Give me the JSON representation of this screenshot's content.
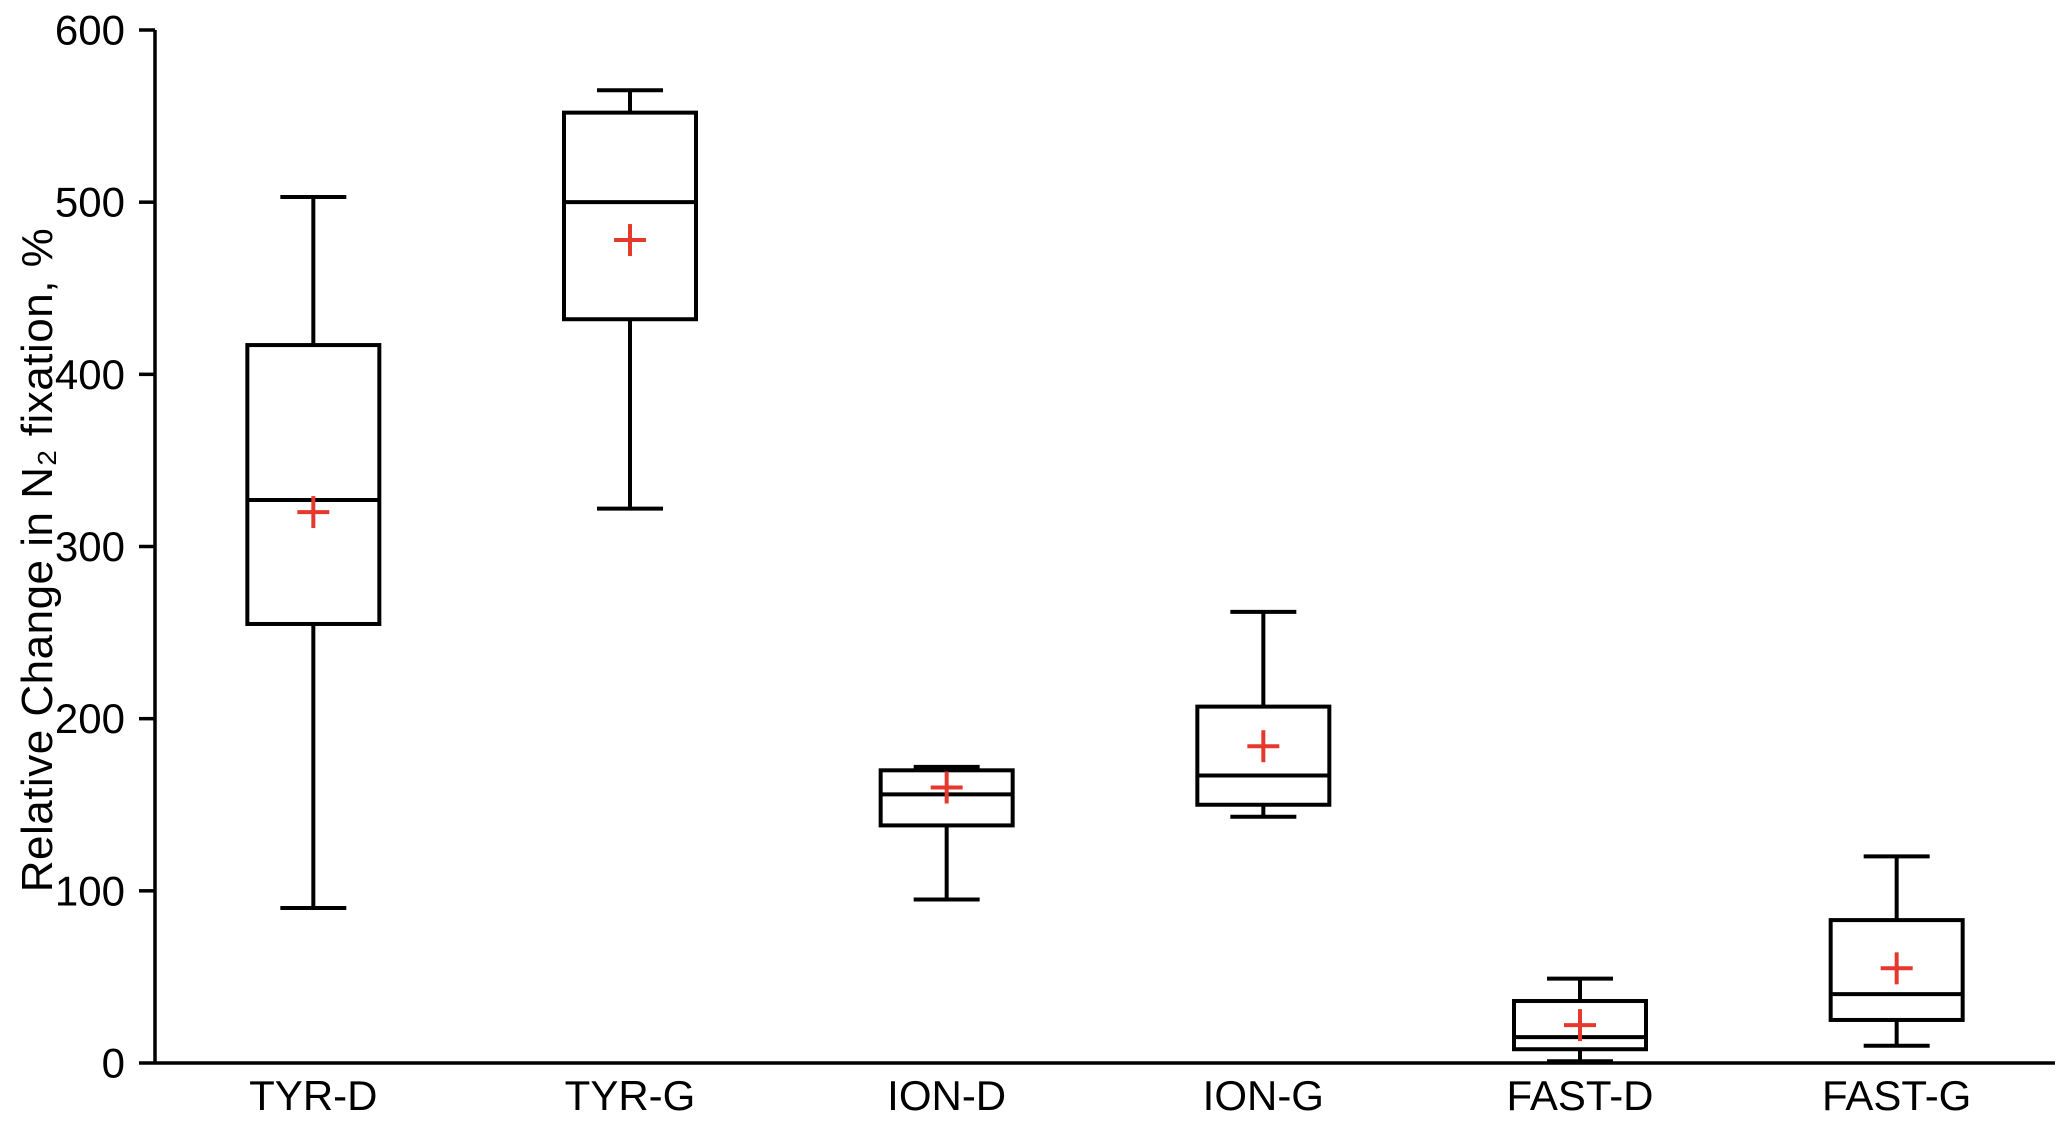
{
  "chart_data": {
    "type": "boxplot",
    "title": "",
    "xlabel": "",
    "ylabel": "Relative Change in N₂ fixation, %",
    "ylim": [
      0,
      600
    ],
    "yticks": [
      0,
      100,
      200,
      300,
      400,
      500,
      600
    ],
    "grid": false,
    "legend": "none",
    "box_stroke_color": "#000000",
    "box_fill_color": "#ffffff",
    "mean_marker": {
      "shape": "plus",
      "color": "#e5392e"
    },
    "categories": [
      "TYR-D",
      "TYR-G",
      "ION-D",
      "ION-G",
      "FAST-D",
      "FAST-G"
    ],
    "series": [
      {
        "name": "TYR-D",
        "whisker_low": 90,
        "q1": 255,
        "median": 327,
        "q3": 417,
        "whisker_high": 503,
        "mean": 320
      },
      {
        "name": "TYR-G",
        "whisker_low": 322,
        "q1": 432,
        "median": 500,
        "q3": 552,
        "whisker_high": 565,
        "mean": 478
      },
      {
        "name": "ION-D",
        "whisker_low": 95,
        "q1": 138,
        "median": 156,
        "q3": 170,
        "whisker_high": 172,
        "mean": 160
      },
      {
        "name": "ION-G",
        "whisker_low": 143,
        "q1": 150,
        "median": 167,
        "q3": 207,
        "whisker_high": 262,
        "mean": 184
      },
      {
        "name": "FAST-D",
        "whisker_low": 1,
        "q1": 8,
        "median": 15,
        "q3": 36,
        "whisker_high": 49,
        "mean": 22
      },
      {
        "name": "FAST-G",
        "whisker_low": 10,
        "q1": 25,
        "median": 40,
        "q3": 83,
        "whisker_high": 120,
        "mean": 55
      }
    ]
  }
}
